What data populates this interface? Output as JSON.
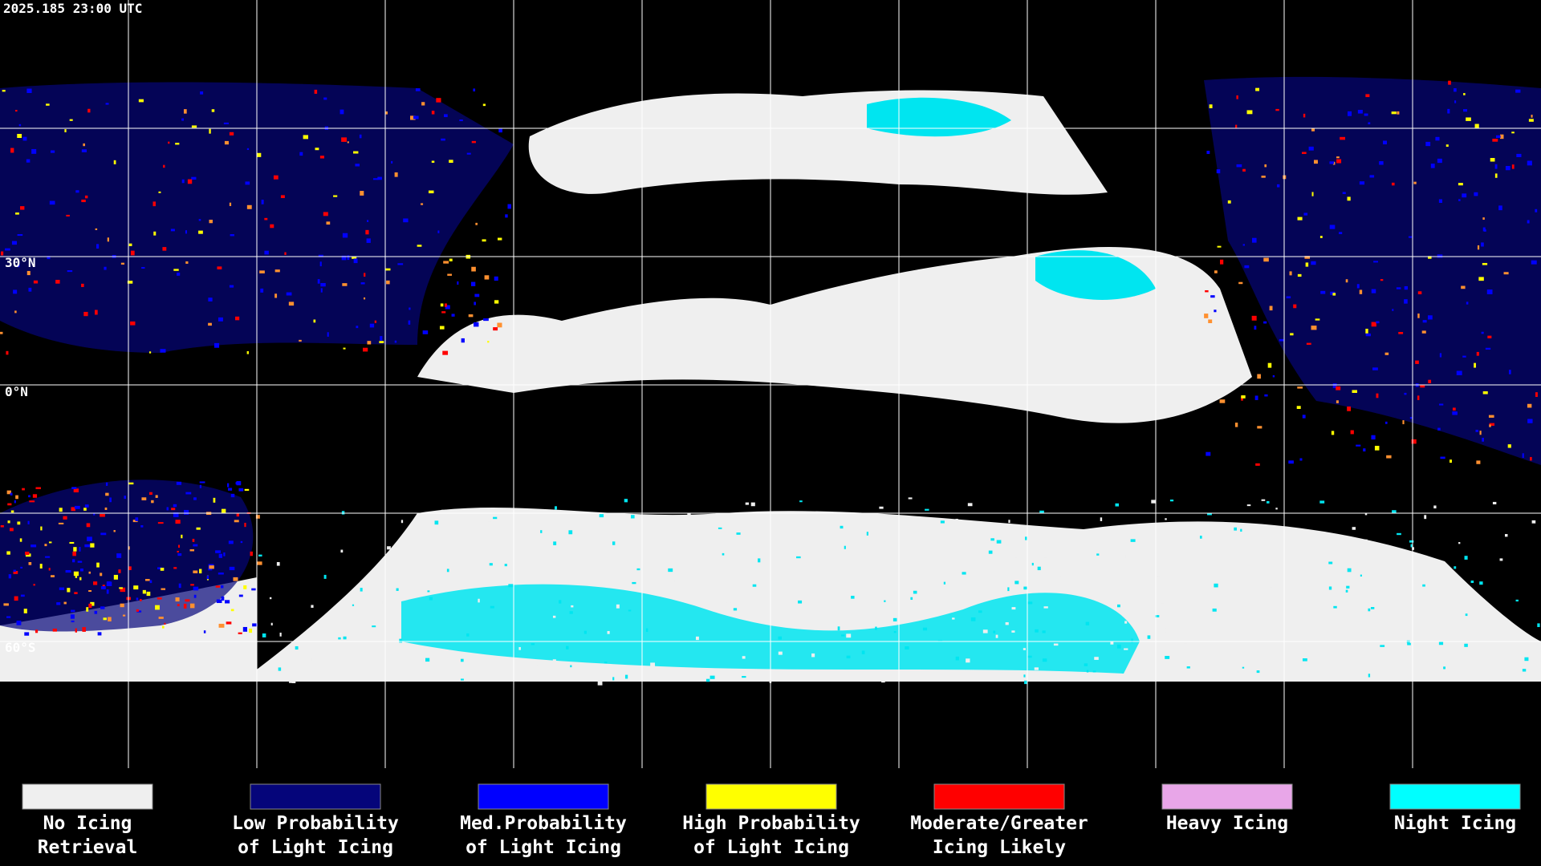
{
  "header": {
    "timestamp": "2025.185 23:00 UTC"
  },
  "map": {
    "latitude_labels": [
      "30°N",
      "0°N",
      "60°S"
    ]
  },
  "legend": {
    "items": [
      {
        "label": [
          "No Icing",
          "Retrieval"
        ],
        "color": "#efefef"
      },
      {
        "label": [
          "Low Probability",
          "of Light Icing"
        ],
        "color": "#05057a"
      },
      {
        "label": [
          "Med.Probability",
          "of Light Icing"
        ],
        "color": "#0000ff"
      },
      {
        "label": [
          "High Probability",
          "of Light Icing"
        ],
        "color": "#ffff00"
      },
      {
        "label": [
          "Moderate/Greater",
          "Icing Likely"
        ],
        "color": "#ff0000"
      },
      {
        "label": [
          "Heavy Icing"
        ],
        "color": "#e8a6e8"
      },
      {
        "label": [
          "Night Icing"
        ],
        "color": "#00ffff"
      }
    ]
  }
}
